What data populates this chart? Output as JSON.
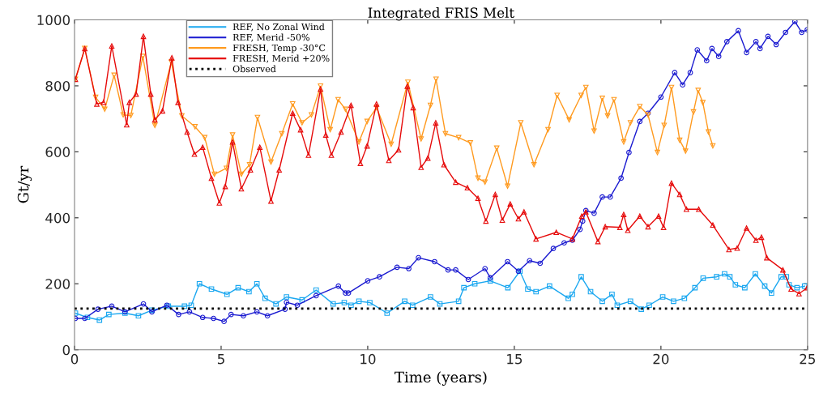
{
  "chart_data": {
    "type": "line",
    "title": "Integrated FRIS Melt",
    "xlabel": "Time (years)",
    "ylabel": "Gt/yr",
    "xlim": [
      0,
      25
    ],
    "ylim": [
      0,
      1000
    ],
    "xticks": [
      0,
      5,
      10,
      15,
      20,
      25
    ],
    "yticks": [
      0,
      200,
      400,
      600,
      800,
      1000
    ],
    "grid": false,
    "legend": "top left",
    "line_style": "solid",
    "series": [
      {
        "name": "REF, No Zonal Wind",
        "color": "#1aa7f0",
        "marker": "square",
        "x": [
          0.03,
          0.44,
          0.85,
          1.17,
          1.72,
          2.18,
          2.64,
          3.2,
          3.75,
          3.98,
          4.26,
          4.67,
          5.2,
          5.58,
          5.95,
          6.22,
          6.5,
          6.87,
          7.23,
          7.76,
          8.24,
          8.82,
          9.2,
          9.43,
          9.7,
          10.07,
          10.66,
          11.26,
          11.53,
          12.14,
          12.46,
          13.1,
          13.28,
          13.65,
          14.18,
          14.78,
          15.19,
          15.46,
          15.74,
          16.2,
          16.84,
          16.98,
          17.28,
          17.6,
          18.0,
          18.33,
          18.51,
          18.96,
          19.33,
          19.6,
          20.06,
          20.43,
          20.8,
          21.16,
          21.44,
          21.9,
          22.17,
          22.35,
          22.54,
          22.86,
          23.22,
          23.54,
          23.77,
          24.1,
          24.28,
          24.37,
          24.64,
          24.9
        ],
        "values": [
          111,
          98,
          90,
          107,
          111,
          103,
          120,
          132,
          132,
          135,
          200,
          184,
          168,
          188,
          176,
          200,
          156,
          139,
          160,
          151,
          181,
          139,
          143,
          135,
          147,
          143,
          111,
          147,
          135,
          160,
          139,
          147,
          188,
          200,
          209,
          188,
          238,
          184,
          176,
          193,
          156,
          168,
          221,
          176,
          147,
          168,
          135,
          147,
          123,
          135,
          160,
          147,
          156,
          188,
          217,
          221,
          230,
          221,
          197,
          188,
          230,
          193,
          172,
          221,
          221,
          197,
          188,
          193
        ]
      },
      {
        "name": "REF, Merid -50%",
        "color": "#1a1ad0",
        "marker": "circle",
        "x": [
          0.03,
          0.35,
          0.8,
          1.27,
          1.72,
          2.35,
          2.64,
          3.15,
          3.55,
          3.92,
          4.37,
          4.74,
          5.1,
          5.34,
          5.76,
          6.22,
          6.58,
          7.18,
          7.23,
          7.6,
          8.24,
          9.0,
          9.24,
          9.34,
          10.0,
          10.4,
          11.0,
          11.4,
          11.73,
          12.28,
          12.74,
          13.0,
          13.43,
          14.0,
          14.18,
          14.77,
          15.14,
          15.52,
          15.88,
          16.33,
          16.7,
          16.98,
          17.24,
          17.33,
          17.44,
          17.72,
          18.0,
          18.27,
          18.64,
          18.91,
          19.28,
          19.56,
          20.0,
          20.47,
          20.74,
          21.0,
          21.24,
          21.56,
          21.74,
          21.97,
          22.25,
          22.64,
          22.92,
          23.24,
          23.38,
          23.65,
          23.93,
          24.25,
          24.57,
          24.8,
          24.99
        ],
        "values": [
          95,
          95,
          123,
          132,
          115,
          139,
          115,
          135,
          107,
          115,
          98,
          95,
          86,
          107,
          103,
          115,
          103,
          123,
          144,
          135,
          164,
          193,
          172,
          172,
          209,
          221,
          250,
          246,
          279,
          267,
          242,
          242,
          213,
          246,
          218,
          267,
          238,
          270,
          262,
          307,
          324,
          332,
          365,
          390,
          422,
          414,
          463,
          463,
          520,
          598,
          692,
          717,
          766,
          840,
          803,
          840,
          909,
          876,
          913,
          889,
          934,
          967,
          901,
          934,
          913,
          950,
          925,
          962,
          995,
          962,
          970
        ]
      },
      {
        "name": "FRESH, Temp -30°C",
        "color": "#ff9a1f",
        "marker": "triangle_down",
        "x": [
          0.03,
          0.35,
          0.72,
          1.03,
          1.35,
          1.66,
          1.92,
          2.33,
          2.74,
          3.3,
          3.66,
          4.11,
          4.44,
          4.77,
          5.18,
          5.39,
          5.69,
          5.97,
          6.24,
          6.7,
          7.07,
          7.44,
          7.76,
          8.08,
          8.39,
          8.72,
          8.99,
          9.24,
          9.7,
          9.98,
          10.3,
          10.8,
          11.37,
          11.82,
          12.14,
          12.33,
          12.65,
          13.1,
          13.5,
          13.76,
          14.0,
          14.4,
          14.77,
          15.22,
          15.67,
          16.15,
          16.46,
          16.87,
          17.28,
          17.44,
          17.72,
          18.0,
          18.18,
          18.4,
          18.73,
          18.96,
          19.28,
          19.56,
          19.88,
          20.11,
          20.36,
          20.64,
          20.84,
          21.11,
          21.27,
          21.43,
          21.62,
          21.77
        ],
        "values": [
          820,
          913,
          765,
          729,
          832,
          712,
          710,
          889,
          680,
          872,
          709,
          676,
          643,
          532,
          550,
          651,
          532,
          561,
          704,
          569,
          655,
          745,
          688,
          712,
          799,
          667,
          758,
          729,
          630,
          692,
          734,
          623,
          811,
          639,
          741,
          820,
          655,
          643,
          627,
          520,
          508,
          611,
          496,
          688,
          561,
          667,
          771,
          697,
          771,
          795,
          663,
          762,
          709,
          758,
          630,
          688,
          737,
          712,
          598,
          680,
          795,
          635,
          602,
          721,
          786,
          749,
          660,
          618
        ]
      },
      {
        "name": "FRESH, Merid +20%",
        "color": "#e60a0a",
        "marker": "triangle",
        "x": [
          0.03,
          0.35,
          0.76,
          0.99,
          1.27,
          1.78,
          1.87,
          2.1,
          2.35,
          2.6,
          2.74,
          3.0,
          3.32,
          3.53,
          3.84,
          4.09,
          4.37,
          4.67,
          4.94,
          5.14,
          5.39,
          5.69,
          6.0,
          6.32,
          6.7,
          6.98,
          7.44,
          7.71,
          7.98,
          8.39,
          8.57,
          8.76,
          9.09,
          9.43,
          9.75,
          9.98,
          10.3,
          10.72,
          11.05,
          11.35,
          11.55,
          11.82,
          12.05,
          12.32,
          12.6,
          13.0,
          13.4,
          13.76,
          14.03,
          14.35,
          14.59,
          14.86,
          15.14,
          15.33,
          15.74,
          16.43,
          16.98,
          17.3,
          17.44,
          17.85,
          18.1,
          18.6,
          18.73,
          18.87,
          19.28,
          19.56,
          19.92,
          20.09,
          20.36,
          20.64,
          20.87,
          21.29,
          21.77,
          22.32,
          22.6,
          22.92,
          23.24,
          23.43,
          23.61,
          24.16,
          24.44,
          24.71,
          24.99
        ],
        "values": [
          820,
          913,
          745,
          750,
          921,
          682,
          750,
          775,
          950,
          775,
          697,
          724,
          885,
          750,
          660,
          593,
          614,
          520,
          445,
          495,
          630,
          488,
          545,
          614,
          451,
          545,
          717,
          667,
          590,
          790,
          651,
          590,
          660,
          741,
          565,
          618,
          745,
          574,
          606,
          799,
          734,
          553,
          581,
          688,
          561,
          508,
          491,
          459,
          390,
          471,
          393,
          442,
          397,
          418,
          336,
          356,
          336,
          405,
          418,
          328,
          373,
          371,
          410,
          362,
          405,
          373,
          405,
          371,
          505,
          471,
          426,
          426,
          378,
          304,
          308,
          369,
          332,
          341,
          279,
          242,
          184,
          170,
          188
        ]
      },
      {
        "name": "Observed",
        "color": "#000000",
        "line_style": "dotted",
        "marker": "none",
        "x": [
          0,
          25
        ],
        "values": [
          125,
          125
        ]
      }
    ]
  }
}
